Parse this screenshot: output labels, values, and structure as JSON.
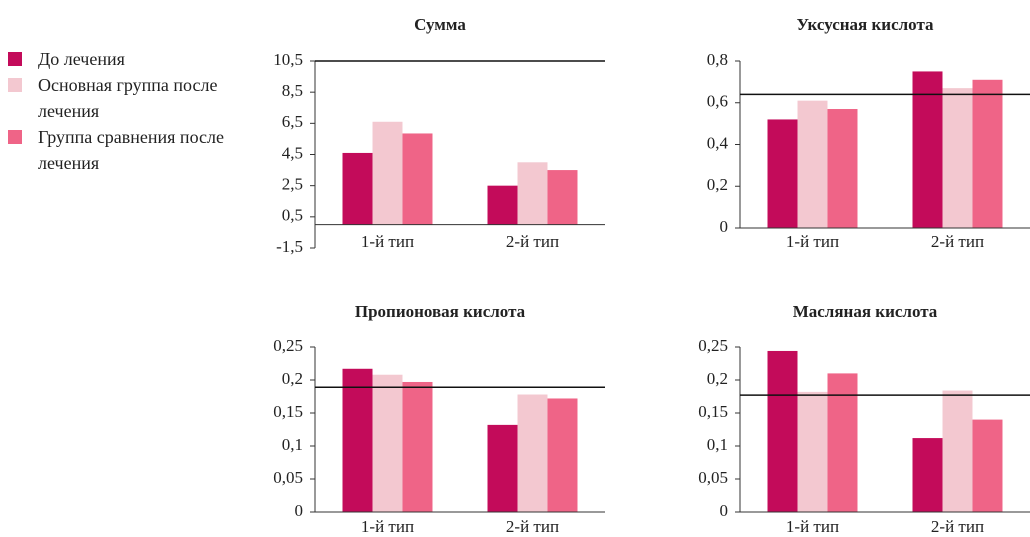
{
  "legend": [
    {
      "name": "До лечения",
      "color": "#c30b5a"
    },
    {
      "name": "Основная группа после лечения",
      "color": "#f3c8d0"
    },
    {
      "name": "Группа сравнения после лечения",
      "color": "#ef6487"
    }
  ],
  "chart_data": [
    {
      "type": "bar",
      "title": "Сумма",
      "categories": [
        "1-й тип",
        "2-й тип"
      ],
      "series": [
        {
          "values": [
            4.6,
            2.5
          ]
        },
        {
          "values": [
            6.6,
            4.0
          ]
        },
        {
          "values": [
            5.85,
            3.5
          ]
        }
      ],
      "ylim": [
        -1.5,
        10.5
      ],
      "yticks": [
        {
          "value": -1.5,
          "label": "-1,5"
        },
        {
          "value": 0.5,
          "label": "0,5"
        },
        {
          "value": 2.5,
          "label": "2,5"
        },
        {
          "value": 4.5,
          "label": "4,5"
        },
        {
          "value": 6.5,
          "label": "6,5"
        },
        {
          "value": 8.5,
          "label": "8,5"
        },
        {
          "value": 10.5,
          "label": "10,5"
        }
      ],
      "reference_line": 10.5
    },
    {
      "type": "bar",
      "title": "Уксусная кислота",
      "categories": [
        "1-й тип",
        "2-й тип"
      ],
      "series": [
        {
          "values": [
            0.52,
            0.75
          ]
        },
        {
          "values": [
            0.61,
            0.67
          ]
        },
        {
          "values": [
            0.57,
            0.71
          ]
        }
      ],
      "ylim": [
        0,
        0.8
      ],
      "yticks": [
        0,
        {
          "value": 0.2,
          "label": "0,2"
        },
        {
          "value": 0.4,
          "label": "0,4"
        },
        {
          "value": 0.6,
          "label": "0,6"
        },
        {
          "value": 0.8,
          "label": "0,8"
        }
      ],
      "reference_line": 0.64
    },
    {
      "type": "bar",
      "title": "Пропионовая кислота",
      "categories": [
        "1-й тип",
        "2-й тип"
      ],
      "series": [
        {
          "values": [
            0.217,
            0.132
          ]
        },
        {
          "values": [
            0.208,
            0.178
          ]
        },
        {
          "values": [
            0.197,
            0.172
          ]
        }
      ],
      "ylim": [
        0,
        0.25
      ],
      "yticks": [
        0,
        {
          "value": 0.05,
          "label": "0,05"
        },
        {
          "value": 0.1,
          "label": "0,1"
        },
        {
          "value": 0.15,
          "label": "0,15"
        },
        {
          "value": 0.2,
          "label": "0,2"
        },
        {
          "value": 0.25,
          "label": "0,25"
        }
      ],
      "reference_line": 0.189
    },
    {
      "type": "bar",
      "title": "Масляная кислота",
      "categories": [
        "1-й тип",
        "2-й тип"
      ],
      "series": [
        {
          "values": [
            0.244,
            0.112
          ]
        },
        {
          "values": [
            0.182,
            0.184
          ]
        },
        {
          "values": [
            0.21,
            0.14
          ]
        }
      ],
      "ylim": [
        0,
        0.25
      ],
      "yticks": [
        0,
        {
          "value": 0.05,
          "label": "0,05"
        },
        {
          "value": 0.1,
          "label": "0,1"
        },
        {
          "value": 0.15,
          "label": "0,15"
        },
        {
          "value": 0.2,
          "label": "0,2"
        },
        {
          "value": 0.25,
          "label": "0,25"
        }
      ],
      "reference_line": 0.177
    }
  ]
}
